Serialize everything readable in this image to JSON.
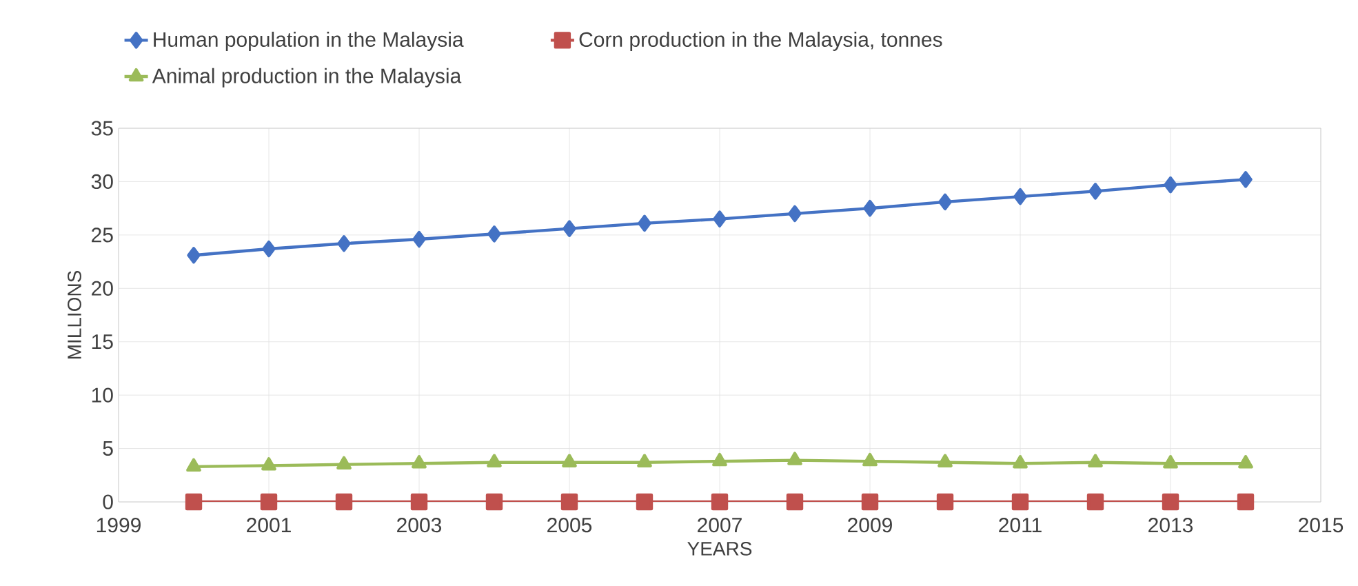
{
  "chart_data": {
    "type": "line",
    "xlabel": "YEARS",
    "ylabel": "MILLIONS",
    "x": [
      2000,
      2001,
      2002,
      2003,
      2004,
      2005,
      2006,
      2007,
      2008,
      2009,
      2010,
      2011,
      2012,
      2013,
      2014
    ],
    "series": [
      {
        "name": "Human population in the Malaysia",
        "color": "#4472c4",
        "marker": "diamond",
        "values": [
          23.1,
          23.7,
          24.2,
          24.6,
          25.1,
          25.6,
          26.1,
          26.5,
          27.0,
          27.5,
          28.1,
          28.6,
          29.1,
          29.7,
          30.2
        ]
      },
      {
        "name": "Corn production in the Malaysia, tonnes",
        "color": "#c0504d",
        "marker": "square",
        "values": [
          0,
          0,
          0,
          0,
          0,
          0,
          0,
          0,
          0,
          0,
          0,
          0,
          0,
          0,
          0
        ]
      },
      {
        "name": "Animal production in the Malaysia",
        "color": "#9bbb59",
        "marker": "triangle",
        "values": [
          3.3,
          3.4,
          3.5,
          3.6,
          3.7,
          3.7,
          3.7,
          3.8,
          3.9,
          3.8,
          3.7,
          3.6,
          3.7,
          3.6,
          3.6
        ]
      }
    ],
    "xlim": [
      1999,
      2015
    ],
    "xticks": [
      1999,
      2001,
      2003,
      2005,
      2007,
      2009,
      2011,
      2013,
      2015
    ],
    "ylim": [
      0,
      35
    ],
    "yticks": [
      0,
      5,
      10,
      15,
      20,
      25,
      30,
      35
    ],
    "grid": true,
    "legend": "top",
    "line_style": "solid"
  }
}
